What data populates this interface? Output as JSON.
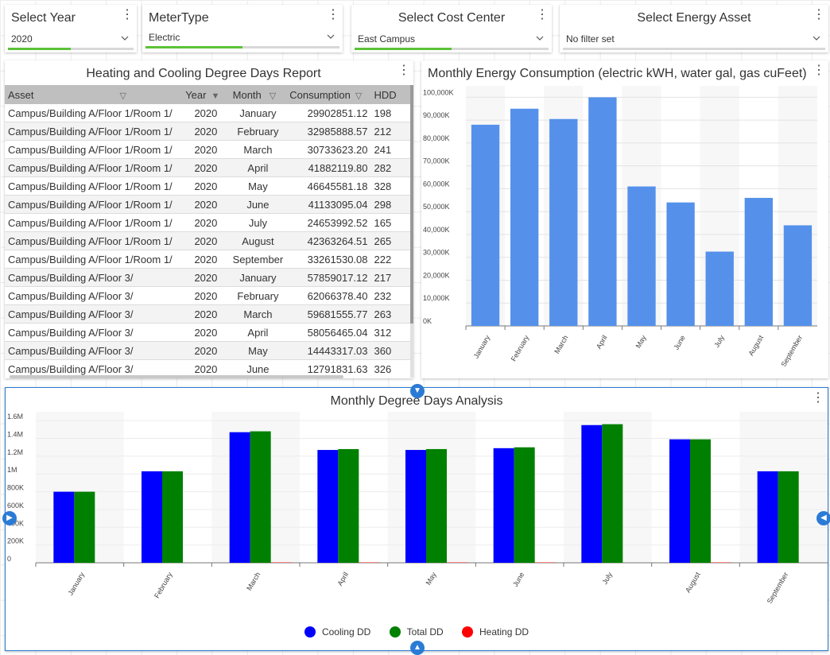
{
  "slicers": [
    {
      "title": "Select Year",
      "value": "2020"
    },
    {
      "title": "MeterType",
      "value": "Electric"
    },
    {
      "title": "Select Cost Center",
      "value": "East Campus"
    },
    {
      "title": "Select Energy Asset",
      "value": "No filter set"
    }
  ],
  "report": {
    "title": "Heating and Cooling Degree Days Report",
    "columns": [
      "Asset",
      "Year",
      "Month",
      "Consumption",
      "HDD"
    ],
    "rows": [
      [
        "Campus/Building A/Floor 1/Room 1/",
        "2020",
        "January",
        "29902851.12",
        "198"
      ],
      [
        "Campus/Building A/Floor 1/Room 1/",
        "2020",
        "February",
        "32985888.57",
        "212"
      ],
      [
        "Campus/Building A/Floor 1/Room 1/",
        "2020",
        "March",
        "30733623.20",
        "241"
      ],
      [
        "Campus/Building A/Floor 1/Room 1/",
        "2020",
        "April",
        "41882119.80",
        "282"
      ],
      [
        "Campus/Building A/Floor 1/Room 1/",
        "2020",
        "May",
        "46645581.18",
        "328"
      ],
      [
        "Campus/Building A/Floor 1/Room 1/",
        "2020",
        "June",
        "41133095.04",
        "298"
      ],
      [
        "Campus/Building A/Floor 1/Room 1/",
        "2020",
        "July",
        "24653992.52",
        "165"
      ],
      [
        "Campus/Building A/Floor 1/Room 1/",
        "2020",
        "August",
        "42363264.51",
        "265"
      ],
      [
        "Campus/Building A/Floor 1/Room 1/",
        "2020",
        "September",
        "33261530.08",
        "222"
      ],
      [
        "Campus/Building A/Floor 3/",
        "2020",
        "January",
        "57859017.12",
        "217"
      ],
      [
        "Campus/Building A/Floor 3/",
        "2020",
        "February",
        "62066378.40",
        "232"
      ],
      [
        "Campus/Building A/Floor 3/",
        "2020",
        "March",
        "59681555.77",
        "263"
      ],
      [
        "Campus/Building A/Floor 3/",
        "2020",
        "April",
        "58056465.04",
        "312"
      ],
      [
        "Campus/Building A/Floor 3/",
        "2020",
        "May",
        "14443317.03",
        "360"
      ],
      [
        "Campus/Building A/Floor 3/",
        "2020",
        "June",
        "12791831.63",
        "326"
      ]
    ]
  },
  "chart_data": [
    {
      "type": "bar",
      "title": "Monthly Energy Consumption (electric kWH, water gal, gas cuFeet)",
      "categories": [
        "January",
        "February",
        "March",
        "April",
        "May",
        "June",
        "July",
        "August",
        "September"
      ],
      "values": [
        88000,
        95000,
        90500,
        100000,
        61000,
        54000,
        32500,
        56000,
        44000
      ],
      "ylim": [
        0,
        105000
      ],
      "yticks": [
        0,
        10000,
        20000,
        30000,
        40000,
        50000,
        60000,
        70000,
        80000,
        90000,
        100000
      ],
      "ytick_labels": [
        "0K",
        "10,000K",
        "20,000K",
        "30,000K",
        "40,000K",
        "50,000K",
        "60,000K",
        "70,000K",
        "80,000K",
        "90,000K",
        "100,000K"
      ],
      "color": "#5591eb"
    },
    {
      "type": "bar",
      "title": "Monthly Degree Days Analysis",
      "categories": [
        "January",
        "February",
        "March",
        "April",
        "May",
        "June",
        "July",
        "August",
        "September"
      ],
      "series": [
        {
          "name": "Cooling DD",
          "color": "#0000ff",
          "values": [
            800000,
            1030000,
            1470000,
            1270000,
            1270000,
            1290000,
            1550000,
            1390000,
            1030000
          ]
        },
        {
          "name": "Total DD",
          "color": "#008000",
          "values": [
            800000,
            1030000,
            1480000,
            1280000,
            1280000,
            1300000,
            1560000,
            1390000,
            1030000
          ]
        },
        {
          "name": "Heating DD",
          "color": "#ff0000",
          "values": [
            0,
            0,
            4000,
            4000,
            4000,
            4000,
            0,
            4000,
            0
          ]
        }
      ],
      "ylim": [
        0,
        1700000
      ],
      "yticks": [
        0,
        200000,
        400000,
        600000,
        800000,
        1000000,
        1200000,
        1400000,
        1600000
      ],
      "ytick_labels": [
        "0",
        "200K",
        "400K",
        "600K",
        "800K",
        "1M",
        "1.2M",
        "1.4M",
        "1.6M"
      ],
      "legend": "bottom"
    }
  ]
}
